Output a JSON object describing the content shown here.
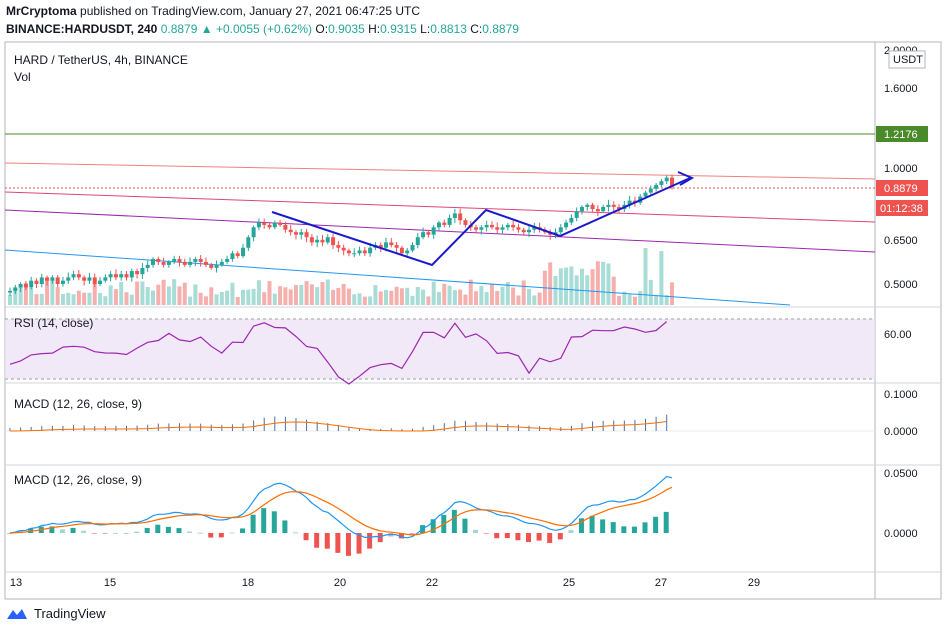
{
  "header": {
    "publisher": "MrCryptoma",
    "published_text": "published on TradingView.com, January 27, 2021 06:47:25 UTC",
    "symbol_full": "BINANCE:HARDUSDT, 240",
    "last_price": "0.8879",
    "arrow": "▲",
    "change": "+0.0055 (+0.62%)",
    "o_label": "O:",
    "o_value": "0.9035",
    "h_label": "H:",
    "h_value": "0.9315",
    "l_label": "L:",
    "l_value": "0.8813",
    "c_label": "C:",
    "c_value": "0.8879"
  },
  "main_pane": {
    "title": "HARD / TetherUS, 4h, BINANCE",
    "vol_label": "Vol",
    "currency": "USDT",
    "y_ticks": [
      "1.6000",
      "1.0000",
      "0.6500",
      "0.5000"
    ],
    "top_tick_partial": "2.0000",
    "green_level_label": "1.2176",
    "price_label": "0.8879",
    "countdown_label": "01:12:38"
  },
  "rsi_pane": {
    "title": "RSI (14, close)",
    "tick": "60.00"
  },
  "macd_pane_1": {
    "title": "MACD (12, 26, close, 9)",
    "ticks": [
      "0.1000",
      "0.0000"
    ]
  },
  "macd_pane_2": {
    "title": "MACD (12, 26, close, 9)",
    "ticks": [
      "0.0500",
      "0.0000"
    ]
  },
  "x_axis": {
    "labels": [
      "13",
      "15",
      "18",
      "20",
      "22",
      "25",
      "27",
      "29"
    ]
  },
  "footer": {
    "brand": "TradingView"
  },
  "colors": {
    "up": "#26a69a",
    "down": "#ef5350",
    "green_level": "#4a8a2a",
    "rsi_line": "#9c27b0",
    "macd_line": "#2196f3",
    "signal_line": "#ff6d00",
    "drawing": "#1a1acd"
  },
  "chart_data": {
    "type": "candlestick",
    "symbol": "HARD / TetherUS",
    "timeframe": "4h",
    "exchange": "BINANCE",
    "y_scale": "log",
    "x_labels": [
      "13",
      "15",
      "18",
      "20",
      "22",
      "25",
      "27",
      "29"
    ],
    "y_ticks": [
      2.0,
      1.6,
      1.0,
      0.65,
      0.5
    ],
    "horizontal_level": 1.2176,
    "last_close": 0.8879,
    "closes": [
      0.48,
      0.49,
      0.5,
      0.49,
      0.51,
      0.5,
      0.52,
      0.51,
      0.52,
      0.5,
      0.51,
      0.52,
      0.53,
      0.52,
      0.51,
      0.52,
      0.5,
      0.51,
      0.52,
      0.53,
      0.52,
      0.53,
      0.52,
      0.54,
      0.53,
      0.55,
      0.56,
      0.58,
      0.57,
      0.56,
      0.57,
      0.58,
      0.57,
      0.56,
      0.57,
      0.58,
      0.57,
      0.56,
      0.55,
      0.56,
      0.57,
      0.58,
      0.6,
      0.59,
      0.62,
      0.66,
      0.7,
      0.72,
      0.71,
      0.7,
      0.72,
      0.71,
      0.69,
      0.68,
      0.67,
      0.68,
      0.66,
      0.64,
      0.65,
      0.64,
      0.66,
      0.63,
      0.62,
      0.61,
      0.6,
      0.6,
      0.61,
      0.6,
      0.62,
      0.63,
      0.62,
      0.64,
      0.63,
      0.62,
      0.6,
      0.61,
      0.63,
      0.66,
      0.68,
      0.67,
      0.7,
      0.72,
      0.71,
      0.74,
      0.76,
      0.73,
      0.71,
      0.7,
      0.69,
      0.7,
      0.71,
      0.7,
      0.69,
      0.7,
      0.71,
      0.7,
      0.69,
      0.68,
      0.69,
      0.7,
      0.69,
      0.68,
      0.67,
      0.68,
      0.7,
      0.72,
      0.74,
      0.77,
      0.79,
      0.8,
      0.78,
      0.77,
      0.79,
      0.8,
      0.79,
      0.78,
      0.8,
      0.82,
      0.81,
      0.84,
      0.86,
      0.88,
      0.9,
      0.92,
      0.94,
      0.89
    ],
    "volume_bar_count": 126,
    "rsi": {
      "period": 14,
      "reference_level": 60.0
    },
    "macd": {
      "fast": 12,
      "slow": 26,
      "source": "close",
      "signal": 9,
      "range_pane1": [
        0.0,
        0.1
      ],
      "range_pane2": [
        0.0,
        0.05
      ]
    }
  }
}
